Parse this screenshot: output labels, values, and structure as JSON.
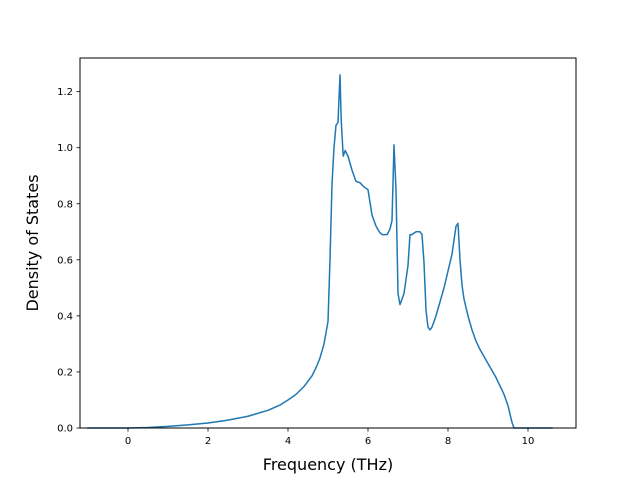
{
  "chart_data": {
    "type": "line",
    "title": "",
    "xlabel": "Frequency (THz)",
    "ylabel": "Density of States",
    "xlim": [
      -1.2,
      11.2
    ],
    "ylim": [
      0.0,
      1.32
    ],
    "xticks": [
      0,
      2,
      4,
      6,
      8,
      10
    ],
    "xtick_labels": [
      "0",
      "2",
      "4",
      "6",
      "8",
      "10"
    ],
    "yticks": [
      0.0,
      0.2,
      0.4,
      0.6,
      0.8,
      1.0,
      1.2
    ],
    "ytick_labels": [
      "0.0",
      "0.2",
      "0.4",
      "0.6",
      "0.8",
      "1.0",
      "1.2"
    ],
    "grid": false,
    "series": [
      {
        "color": "#1f77b4",
        "x": [
          -1.0,
          0.0,
          0.5,
          1.0,
          1.5,
          2.0,
          2.5,
          3.0,
          3.5,
          3.8,
          4.0,
          4.2,
          4.4,
          4.6,
          4.7,
          4.8,
          4.9,
          5.0,
          5.05,
          5.1,
          5.15,
          5.2,
          5.25,
          5.3,
          5.33,
          5.38,
          5.43,
          5.5,
          5.6,
          5.7,
          5.8,
          5.9,
          6.0,
          6.1,
          6.2,
          6.28,
          6.35,
          6.4,
          6.48,
          6.55,
          6.6,
          6.65,
          6.7,
          6.75,
          6.8,
          6.9,
          7.0,
          7.05,
          7.1,
          7.2,
          7.3,
          7.35,
          7.4,
          7.45,
          7.5,
          7.55,
          7.6,
          7.7,
          7.8,
          7.9,
          8.0,
          8.1,
          8.2,
          8.25,
          8.3,
          8.35,
          8.4,
          8.5,
          8.6,
          8.7,
          8.8,
          9.0,
          9.2,
          9.4,
          9.5,
          9.6,
          9.65,
          10.0,
          10.6
        ],
        "y": [
          0.0,
          0.0,
          0.002,
          0.006,
          0.011,
          0.018,
          0.028,
          0.042,
          0.063,
          0.082,
          0.1,
          0.12,
          0.148,
          0.186,
          0.215,
          0.25,
          0.3,
          0.38,
          0.6,
          0.87,
          1.0,
          1.08,
          1.09,
          1.26,
          1.1,
          0.97,
          0.99,
          0.97,
          0.92,
          0.88,
          0.875,
          0.86,
          0.85,
          0.76,
          0.72,
          0.7,
          0.69,
          0.69,
          0.69,
          0.71,
          0.74,
          1.01,
          0.85,
          0.48,
          0.44,
          0.48,
          0.58,
          0.69,
          0.69,
          0.7,
          0.7,
          0.69,
          0.59,
          0.42,
          0.36,
          0.35,
          0.36,
          0.4,
          0.45,
          0.5,
          0.56,
          0.62,
          0.72,
          0.73,
          0.6,
          0.51,
          0.46,
          0.4,
          0.35,
          0.31,
          0.28,
          0.23,
          0.18,
          0.12,
          0.08,
          0.02,
          0.0,
          0.0,
          0.0
        ]
      }
    ]
  }
}
